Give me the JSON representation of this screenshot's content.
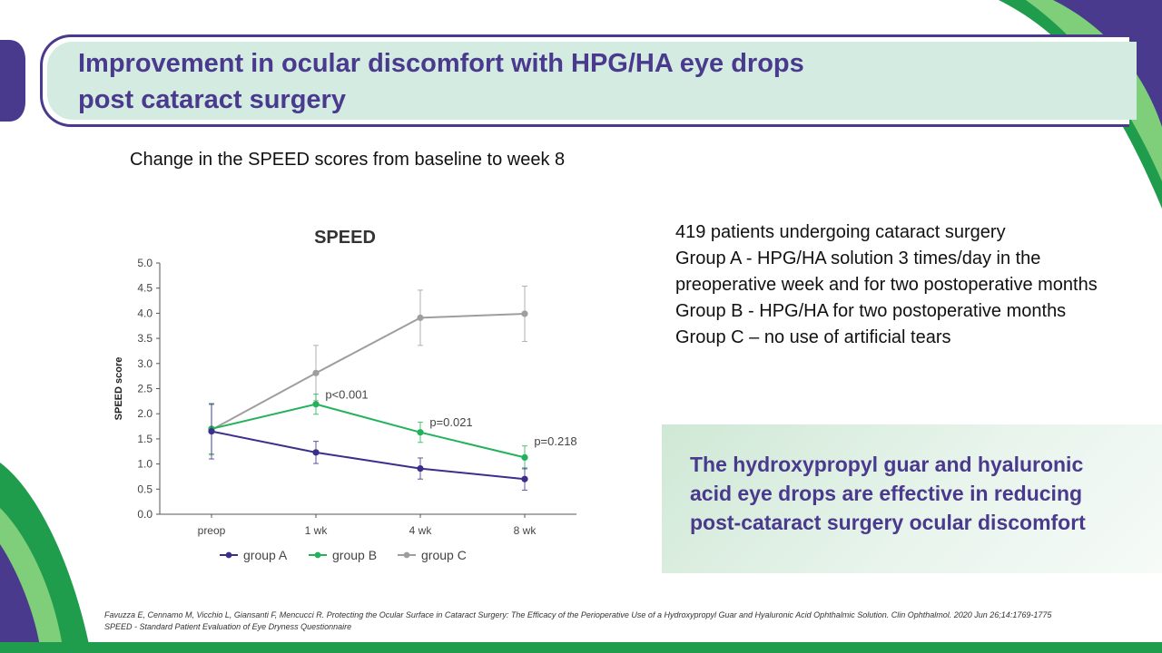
{
  "slide": {
    "title_line1": "Improvement in ocular discomfort with HPG/HA eye drops",
    "title_line2": "post cataract surgery",
    "subtitle": "Change in the SPEED scores from baseline to week 8",
    "info_lines": [
      "419 patients undergoing cataract surgery",
      "Group A - HPG/HA solution 3 times/day in the preoperative week and for two postoperative months",
      "Group B - HPG/HA for two postoperative months",
      "Group C – no use of artificial tears"
    ],
    "conclusion": "The hydroxypropyl guar and hyaluronic acid eye drops are effective in reducing post-cataract surgery ocular discomfort",
    "reference_line1": "Favuzza E, Cennamo M, Vicchio L, Giansanti F, Mencucci R. Protecting the Ocular Surface in Cataract Surgery: The Efficacy of the Perioperative Use of a Hydroxypropyl Guar and Hyaluronic Acid Ophthalmic Solution. Clin Ophthalmol. 2020 Jun 26;14:1769-1775",
    "reference_line2": "SPEED - Standard Patient Evaluation of Eye Dryness Questionnaire"
  },
  "colors": {
    "brand_purple": "#4a3a8e",
    "brand_green": "#1f9d4d",
    "group_a": "#3b2f8c",
    "group_b": "#22b35a",
    "group_c": "#9e9e9e"
  },
  "chart_data": {
    "type": "line",
    "title": "SPEED",
    "xlabel": "",
    "ylabel": "SPEED score",
    "categories": [
      "preop",
      "1 wk",
      "4 wk",
      "8 wk"
    ],
    "ylim": [
      0,
      5
    ],
    "yticks": [
      "0.0",
      "0.5",
      "1.0",
      "1.5",
      "2.0",
      "2.5",
      "3.0",
      "3.5",
      "4.0",
      "4.5",
      "5.0"
    ],
    "series": [
      {
        "name": "group A",
        "color": "#3b2f8c",
        "values": [
          1.65,
          1.23,
          0.91,
          0.7
        ],
        "err": [
          0.55,
          0.22,
          0.21,
          0.22
        ]
      },
      {
        "name": "group B",
        "color": "#22b35a",
        "values": [
          1.7,
          2.19,
          1.63,
          1.13
        ],
        "err": [
          0.5,
          0.2,
          0.2,
          0.23
        ]
      },
      {
        "name": "group C",
        "color": "#9e9e9e",
        "values": [
          1.68,
          2.81,
          3.91,
          3.99
        ],
        "err": [
          0.5,
          0.55,
          0.55,
          0.55
        ]
      }
    ],
    "annotations": [
      {
        "category": "1 wk",
        "text": "p<0.001",
        "y": 2.3
      },
      {
        "category": "4 wk",
        "text": "p=0.021",
        "y": 1.75
      },
      {
        "category": "8 wk",
        "text": "p=0.218",
        "y": 1.37
      }
    ],
    "legend_position": "bottom"
  }
}
